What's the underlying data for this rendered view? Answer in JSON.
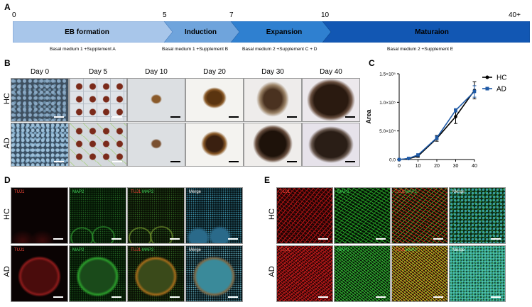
{
  "panels": {
    "A": "A",
    "B": "B",
    "C": "C",
    "D": "D",
    "E": "E"
  },
  "timeline": {
    "ticks": [
      "0",
      "5",
      "7",
      "10",
      "40+"
    ],
    "phases": [
      "EB formation",
      "Induction",
      "Expansion",
      "Maturaion"
    ],
    "media": [
      "Basal medium 1 +Supplement A",
      "Basal medium 1 +Supplement B",
      "Basal medium 2 +Supplement C + D",
      "Basal medium 2 +Supplement E"
    ]
  },
  "panelB": {
    "days": [
      "Day 0",
      "Day 5",
      "Day 10",
      "Day 20",
      "Day 30",
      "Day 40"
    ],
    "rows": [
      "HC",
      "AD"
    ]
  },
  "panelD": {
    "rows": [
      "HC",
      "AD"
    ],
    "channels": {
      "tuj1": "TUJ1",
      "map2": "MAP2",
      "merge": "Merge"
    }
  },
  "panelE": {
    "rows": [
      "HC",
      "AD"
    ],
    "channels": {
      "tuj1": "TUJ1",
      "map2": "MAP2",
      "merge": "Merge"
    }
  },
  "chart_data": {
    "type": "line",
    "ylabel": "Area",
    "x": [
      0,
      5,
      10,
      20,
      30,
      40
    ],
    "xticks": [
      "0",
      "10",
      "20",
      "30",
      "40"
    ],
    "yticks": [
      "0.0",
      "5.0×10⁴",
      "1.0×10⁵",
      "1.5×10⁵"
    ],
    "ylim": [
      0,
      150000
    ],
    "xlim": [
      0,
      40
    ],
    "legend_position": "top-right",
    "series": [
      {
        "name": "HC",
        "color": "#000000",
        "values": [
          0,
          1500,
          6000,
          37000,
          75000,
          121000
        ],
        "error": [
          0,
          500,
          2000,
          5000,
          12000,
          15000
        ]
      },
      {
        "name": "AD",
        "color": "#1f5aa6",
        "values": [
          0,
          2000,
          8000,
          38000,
          86000,
          119000
        ],
        "error": [
          0,
          500,
          2000,
          3000,
          3000,
          10000
        ]
      }
    ]
  },
  "colors": {
    "phase1": "#a8c6ea",
    "phase2": "#6fa4dc",
    "phase3": "#2f80d0",
    "phase4": "#1257b3",
    "hc_line": "#000000",
    "ad_line": "#1f5aa6"
  }
}
